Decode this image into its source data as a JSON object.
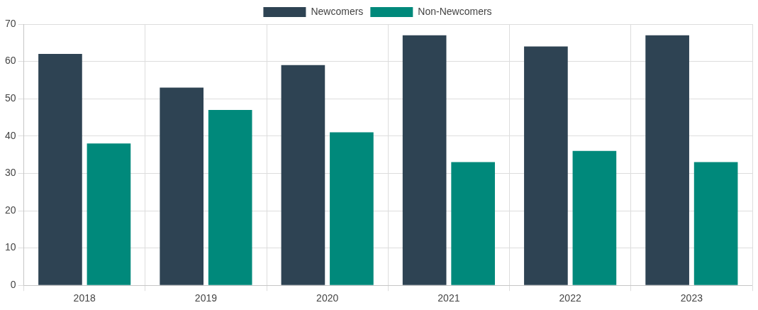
{
  "chart_data": {
    "type": "bar",
    "categories": [
      "2018",
      "2019",
      "2020",
      "2021",
      "2022",
      "2023"
    ],
    "series": [
      {
        "name": "Newcomers",
        "color": "#2e4353",
        "values": [
          62,
          53,
          59,
          67,
          64,
          67
        ]
      },
      {
        "name": "Non-Newcomers",
        "color": "#00897b",
        "values": [
          38,
          47,
          41,
          33,
          36,
          33
        ]
      }
    ],
    "ylim": [
      0,
      70
    ],
    "yticks": [
      0,
      10,
      20,
      30,
      40,
      50,
      60,
      70
    ],
    "grid": true,
    "legend": "top"
  }
}
